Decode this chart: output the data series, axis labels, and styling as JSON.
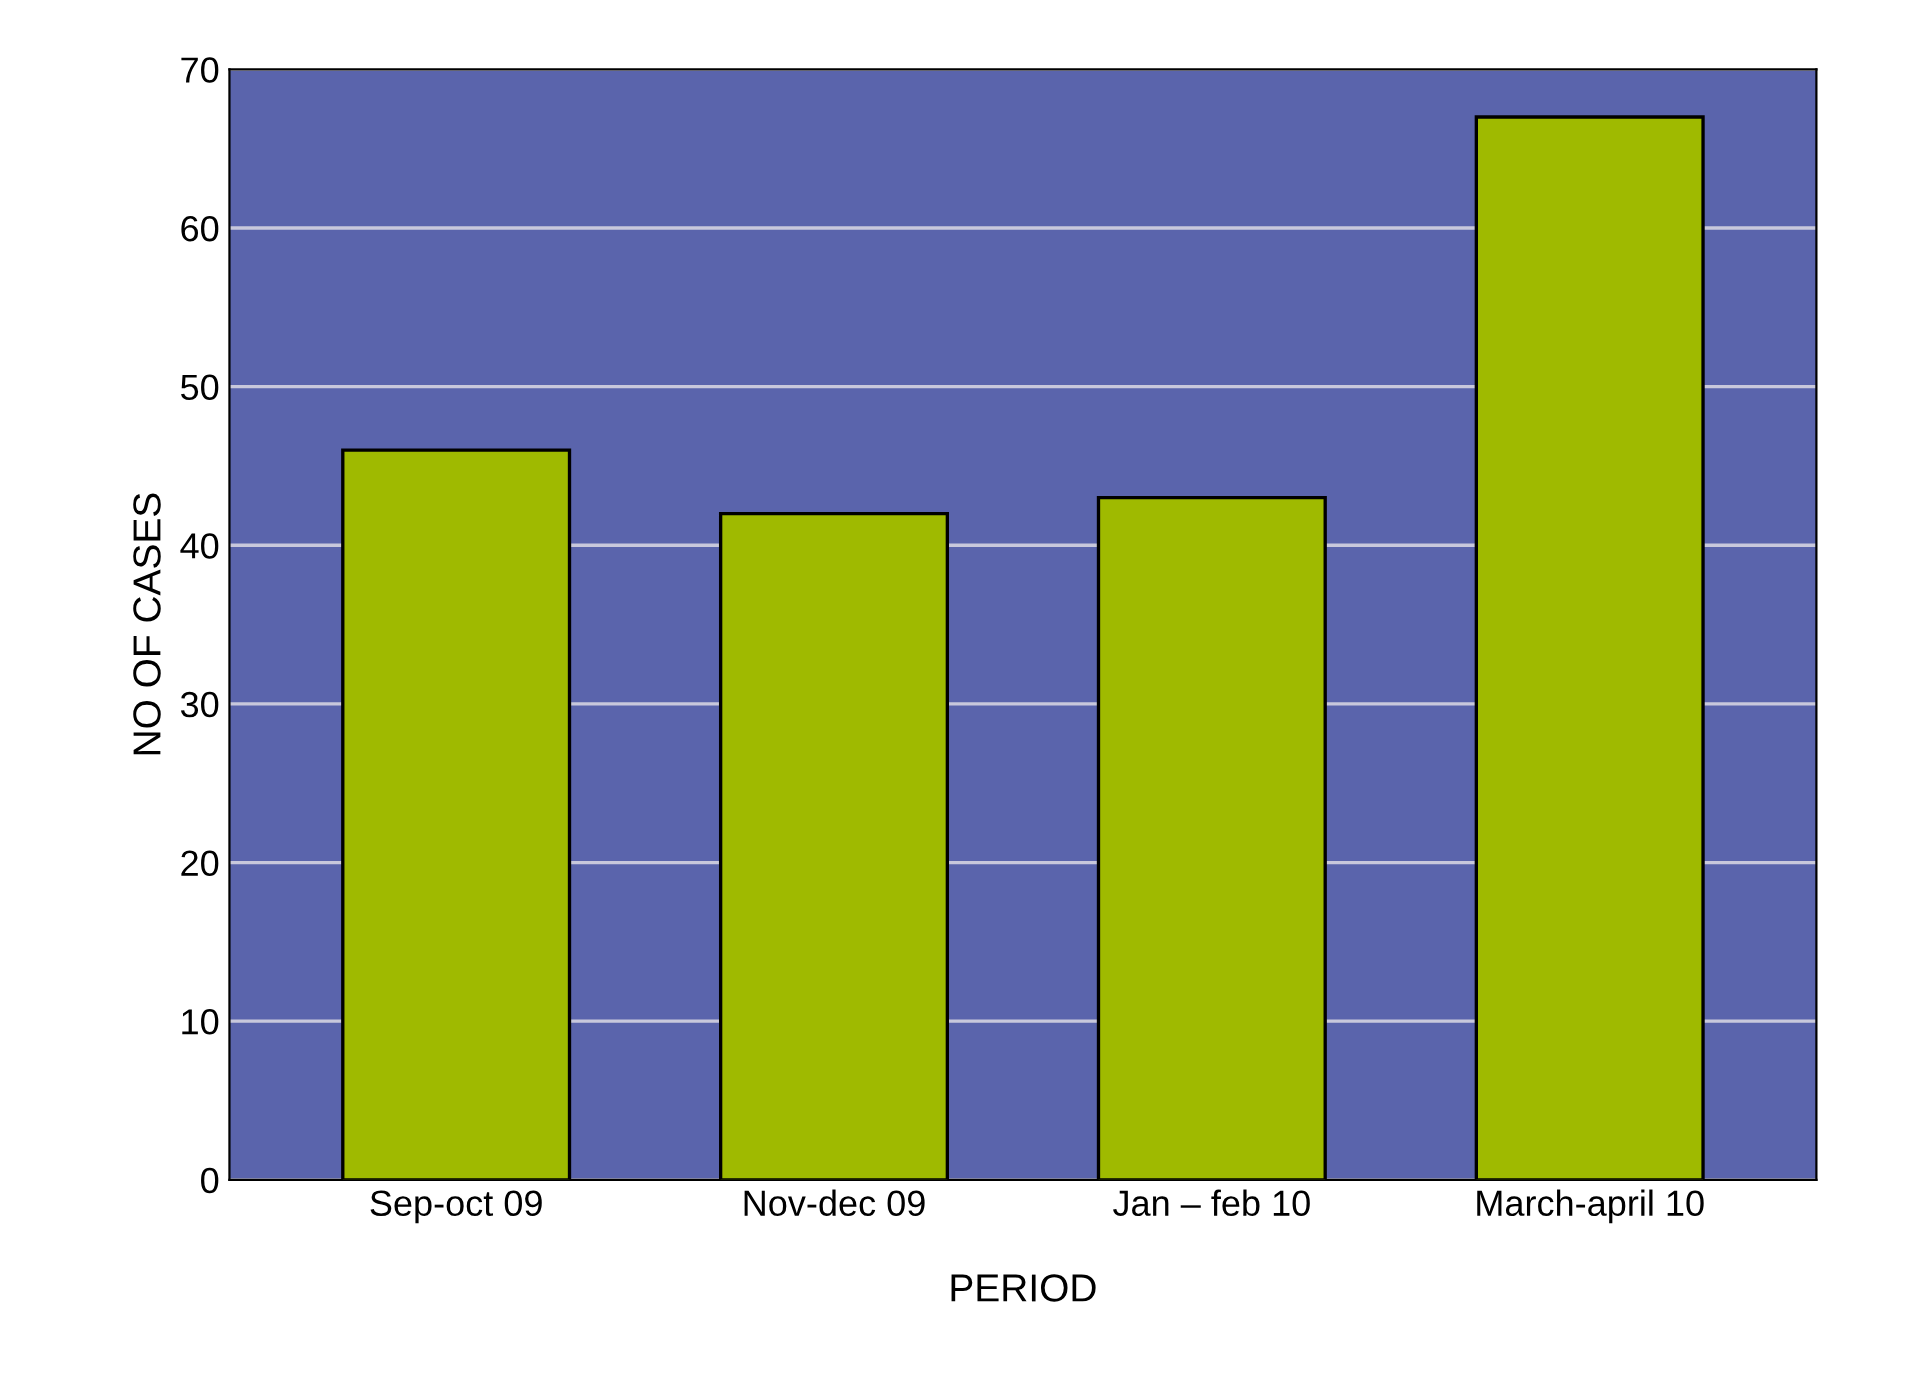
{
  "chart_data": {
    "type": "bar",
    "xlabel": "PERIOD",
    "ylabel": "NO OF CASES",
    "categories": [
      "Sep-oct 09",
      "Nov-dec 09",
      "Jan – feb 10",
      "March-april 10"
    ],
    "values": [
      46,
      42,
      43,
      67
    ],
    "color": "#9fba00",
    "ylim": [
      0,
      70
    ],
    "yticks": [
      0,
      10,
      20,
      30,
      40,
      50,
      60,
      70
    ],
    "grid": "y"
  }
}
